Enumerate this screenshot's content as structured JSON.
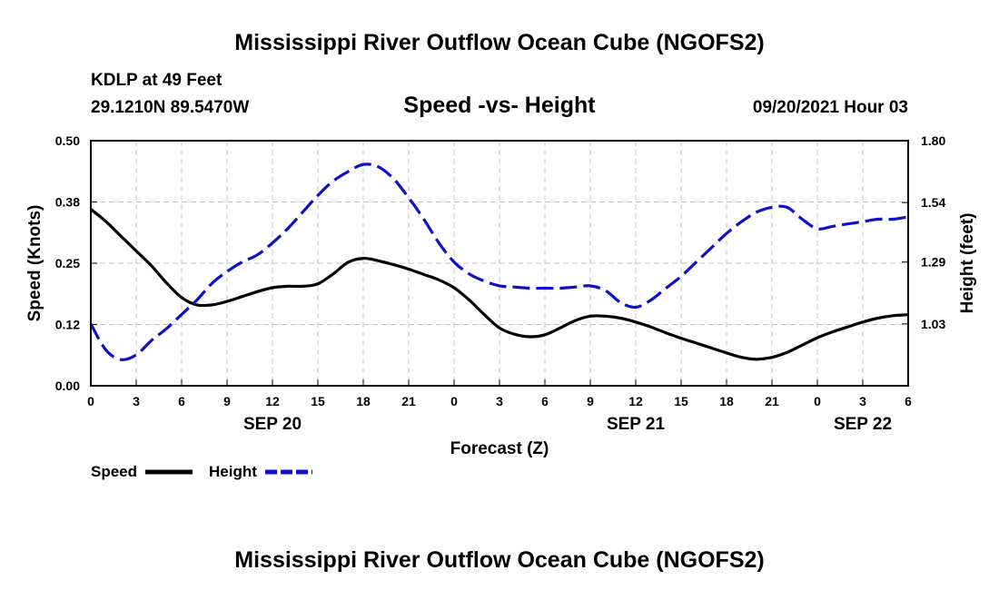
{
  "colors": {
    "speed": "#000000",
    "height": "#1010c8",
    "grid": "#c4c4c4"
  },
  "header": {
    "title_top": "Mississippi River Outflow Ocean Cube (NGOFS2)",
    "title_bottom": "Mississippi River Outflow Ocean Cube (NGOFS2)",
    "station": "KDLP at 49 Feet",
    "coords": "29.1210N  89.5470W",
    "chart_title": "Speed -vs- Height",
    "datetime": "09/20/2021 Hour 03"
  },
  "chart_data": {
    "type": "line",
    "title": "Speed -vs- Height",
    "xlabel": "Forecast (Z)",
    "ylabel": "Speed (Knots)",
    "y2label": "Height (feet)",
    "xlim": [
      0,
      54
    ],
    "ylim": [
      0,
      0.5
    ],
    "y2lim": [
      0.77,
      1.8
    ],
    "x_ticks": [
      0,
      3,
      6,
      9,
      12,
      15,
      18,
      21,
      24,
      27,
      30,
      33,
      36,
      39,
      42,
      45,
      48,
      51,
      54
    ],
    "x_tick_labels": [
      "0",
      "3",
      "6",
      "9",
      "12",
      "15",
      "18",
      "21",
      "0",
      "3",
      "6",
      "9",
      "12",
      "15",
      "18",
      "21",
      "0",
      "3",
      "6"
    ],
    "y_ticks": [
      0,
      0.125,
      0.25,
      0.375,
      0.5
    ],
    "y_tick_labels": [
      "0.00",
      "0.12",
      "0.25",
      "0.38",
      "0.50"
    ],
    "y2_ticks": [
      1.03,
      1.29,
      1.54,
      1.8
    ],
    "y2_tick_labels": [
      "1.03",
      "1.29",
      "1.54",
      "1.80"
    ],
    "date_labels": [
      {
        "x": 12,
        "label": "SEP 20"
      },
      {
        "x": 36,
        "label": "SEP 21"
      },
      {
        "x": 51,
        "label": "SEP 22"
      }
    ],
    "grid": true,
    "legend_position": "bottom-left",
    "series": [
      {
        "name": "Speed",
        "axis": "left",
        "style": "solid",
        "x": [
          0,
          1,
          2,
          3,
          4,
          5,
          6,
          7,
          8,
          9,
          10,
          11,
          12,
          13,
          14,
          15,
          16,
          17,
          18,
          19,
          20,
          21,
          22,
          23,
          24,
          25,
          26,
          27,
          28,
          29,
          30,
          31,
          32,
          33,
          34,
          35,
          36,
          37,
          38,
          39,
          40,
          41,
          42,
          43,
          44,
          45,
          46,
          47,
          48,
          49,
          50,
          51,
          52,
          53,
          54
        ],
        "values": [
          0.36,
          0.335,
          0.305,
          0.275,
          0.245,
          0.21,
          0.18,
          0.165,
          0.165,
          0.172,
          0.182,
          0.192,
          0.2,
          0.203,
          0.203,
          0.208,
          0.228,
          0.252,
          0.26,
          0.255,
          0.247,
          0.238,
          0.227,
          0.216,
          0.2,
          0.175,
          0.145,
          0.118,
          0.105,
          0.1,
          0.104,
          0.118,
          0.133,
          0.142,
          0.142,
          0.138,
          0.13,
          0.12,
          0.108,
          0.097,
          0.087,
          0.077,
          0.067,
          0.058,
          0.054,
          0.058,
          0.068,
          0.083,
          0.098,
          0.11,
          0.12,
          0.13,
          0.138,
          0.143,
          0.145
        ]
      },
      {
        "name": "Height",
        "axis": "right",
        "style": "dashed",
        "x": [
          0,
          1,
          2,
          3,
          4,
          5,
          6,
          7,
          8,
          9,
          10,
          11,
          12,
          13,
          14,
          15,
          16,
          17,
          18,
          19,
          20,
          21,
          22,
          23,
          24,
          25,
          26,
          27,
          28,
          29,
          30,
          31,
          32,
          33,
          34,
          35,
          36,
          37,
          38,
          39,
          40,
          41,
          42,
          43,
          44,
          45,
          46,
          47,
          48,
          49,
          50,
          51,
          52,
          53,
          54
        ],
        "values": [
          1.03,
          0.92,
          0.88,
          0.9,
          0.96,
          1.01,
          1.07,
          1.13,
          1.2,
          1.25,
          1.29,
          1.32,
          1.37,
          1.43,
          1.5,
          1.57,
          1.63,
          1.67,
          1.7,
          1.69,
          1.64,
          1.56,
          1.47,
          1.37,
          1.29,
          1.24,
          1.21,
          1.19,
          1.185,
          1.18,
          1.18,
          1.18,
          1.185,
          1.19,
          1.17,
          1.12,
          1.1,
          1.13,
          1.18,
          1.23,
          1.29,
          1.35,
          1.41,
          1.46,
          1.5,
          1.52,
          1.52,
          1.47,
          1.43,
          1.44,
          1.45,
          1.46,
          1.47,
          1.47,
          1.48
        ]
      }
    ]
  },
  "legend": {
    "items": [
      {
        "label": "Speed"
      },
      {
        "label": "Height"
      }
    ]
  }
}
